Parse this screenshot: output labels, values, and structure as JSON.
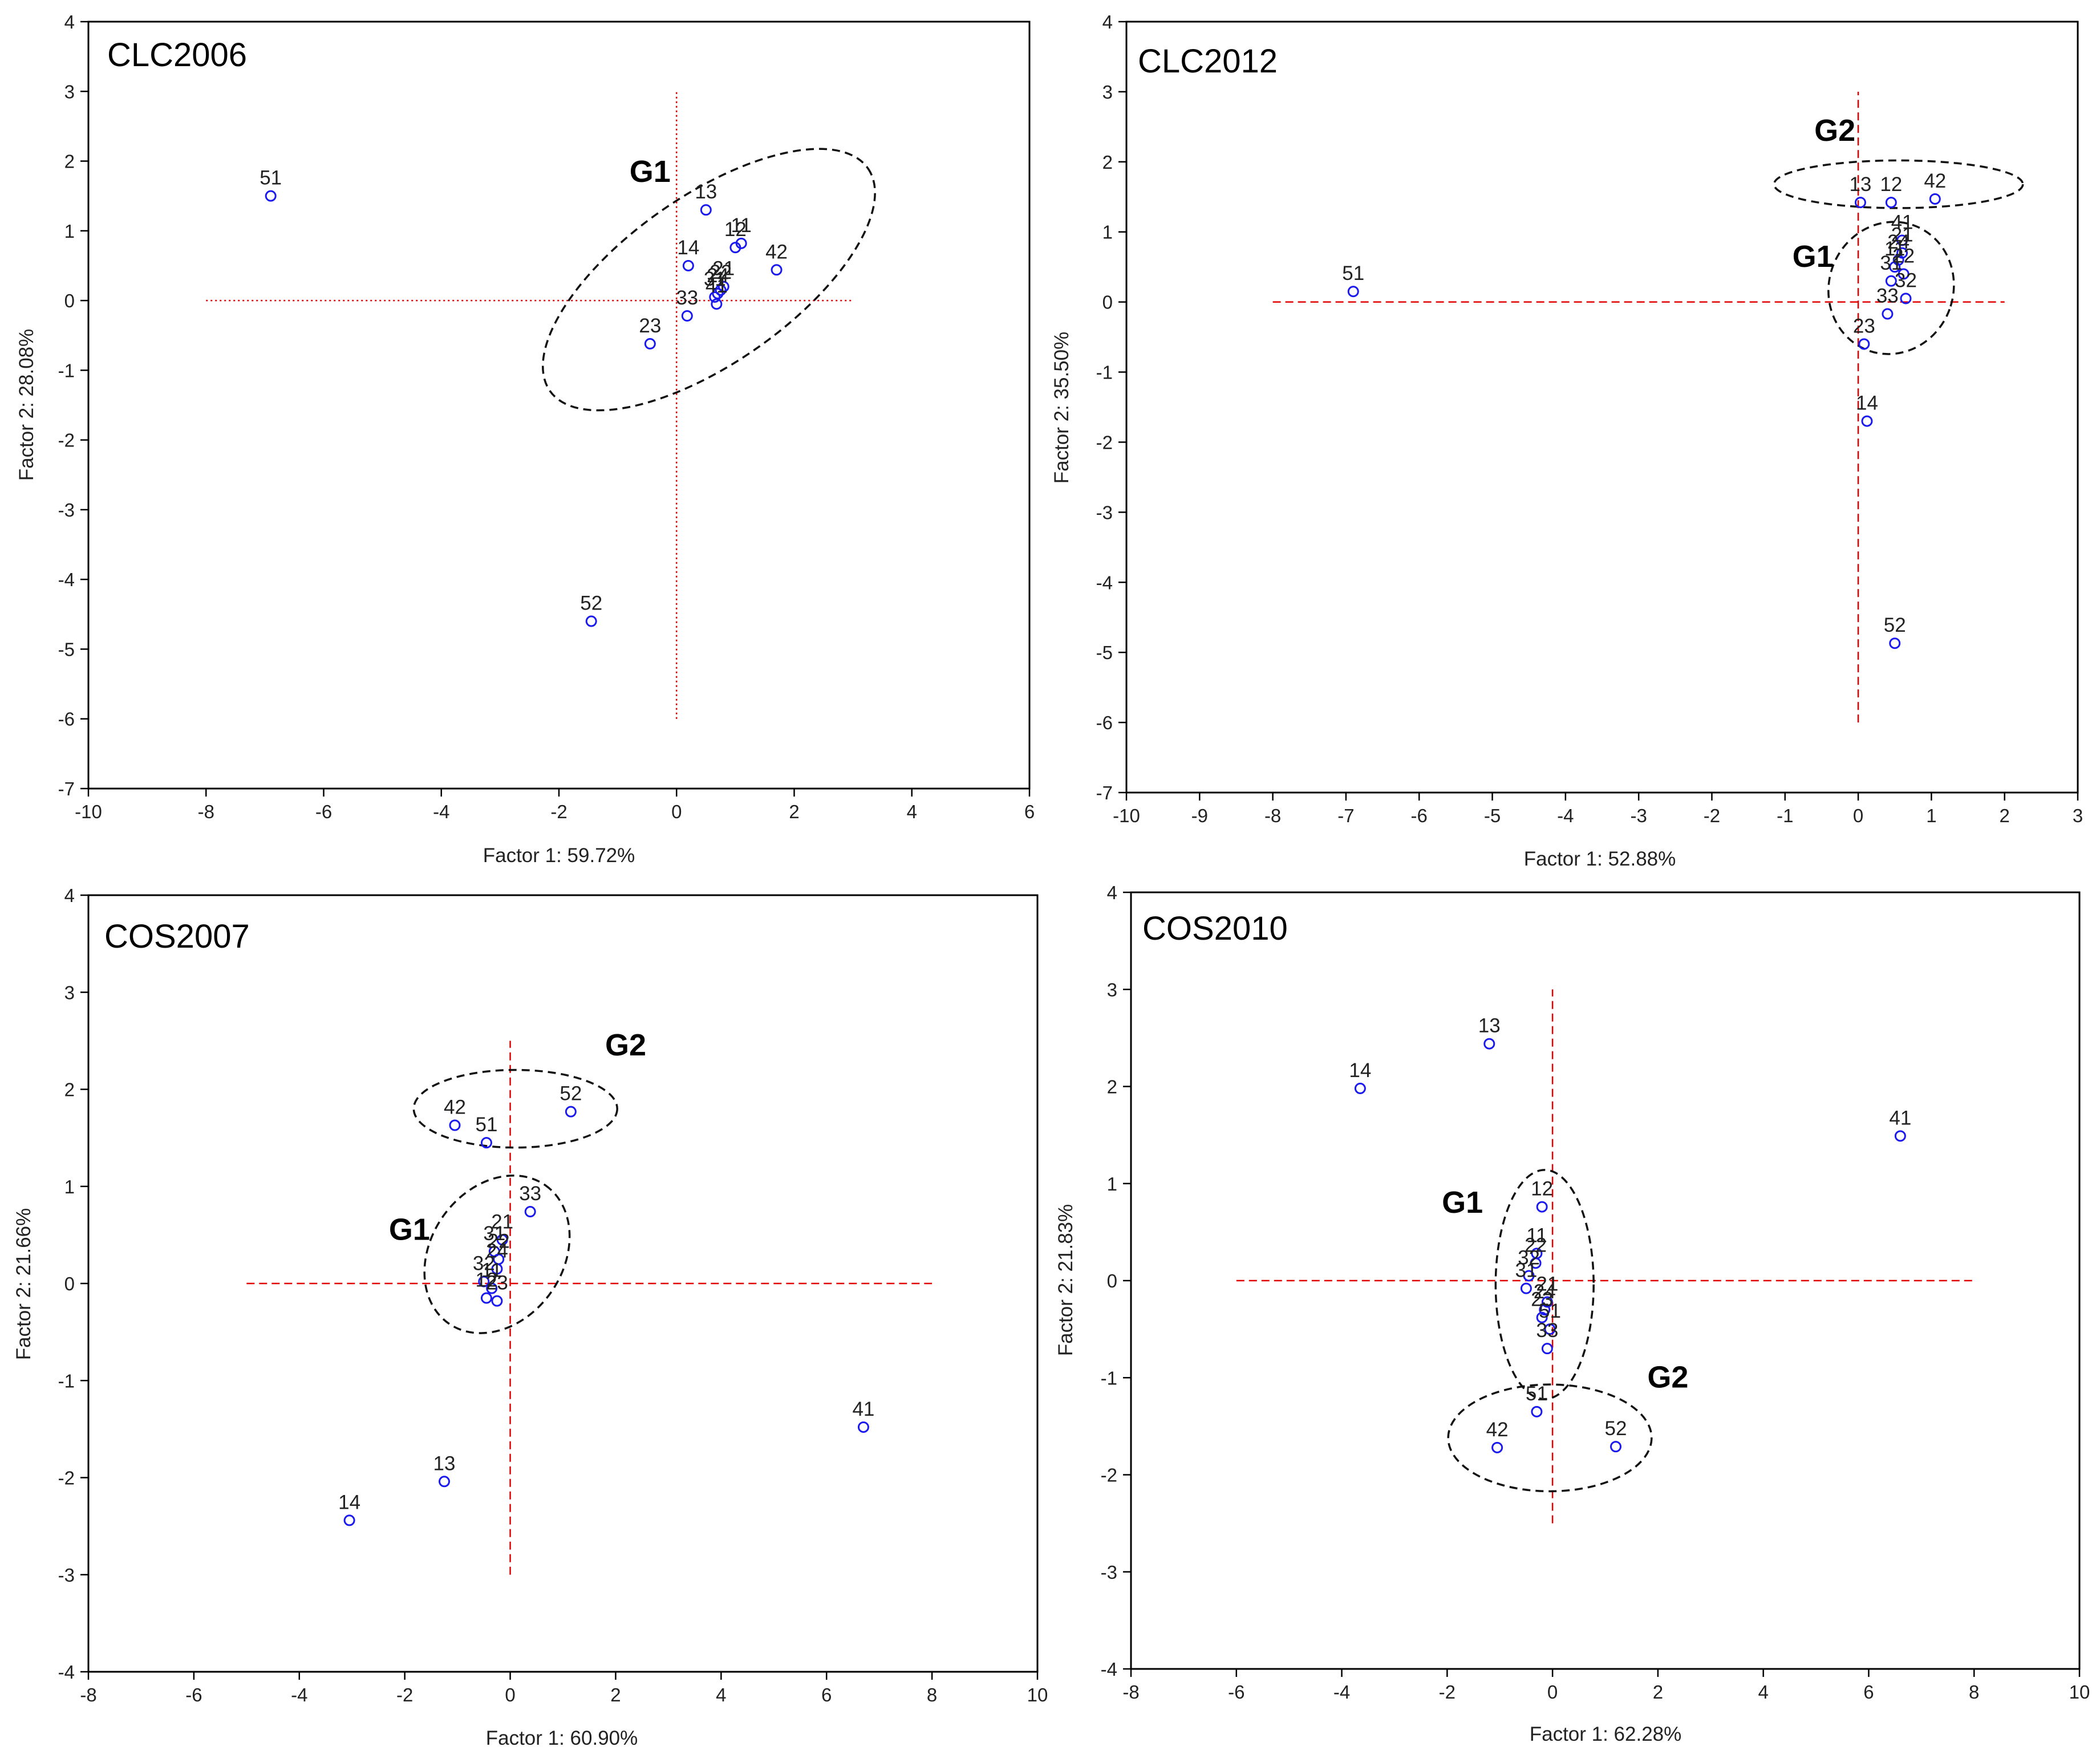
{
  "chart_data": [
    {
      "type": "scatter",
      "title": "CLC2006",
      "xlabel": "Factor 1: 59.72%",
      "ylabel": "Factor 2: 28.08%",
      "xlim": [
        -10,
        6
      ],
      "ylim": [
        -7,
        4
      ],
      "xticks": [
        -10,
        -8,
        -6,
        -4,
        -2,
        0,
        2,
        4,
        6
      ],
      "yticks": [
        -7,
        -6,
        -5,
        -4,
        -3,
        -2,
        -1,
        0,
        1,
        2,
        3,
        4
      ],
      "crosshair": {
        "x": [
          -8,
          3
        ],
        "y": [
          -6,
          3
        ]
      },
      "points": [
        {
          "label": "51",
          "x": -6.9,
          "y": 1.5
        },
        {
          "label": "52",
          "x": -1.45,
          "y": -4.6
        },
        {
          "label": "13",
          "x": 0.5,
          "y": 1.3
        },
        {
          "label": "11",
          "x": 1.1,
          "y": 0.82
        },
        {
          "label": "12",
          "x": 1.0,
          "y": 0.76
        },
        {
          "label": "14",
          "x": 0.2,
          "y": 0.5
        },
        {
          "label": "42",
          "x": 1.7,
          "y": 0.44
        },
        {
          "label": "21",
          "x": 0.8,
          "y": 0.2
        },
        {
          "label": "22",
          "x": 0.75,
          "y": 0.15
        },
        {
          "label": "24",
          "x": 0.7,
          "y": 0.1
        },
        {
          "label": "31",
          "x": 0.65,
          "y": 0.05
        },
        {
          "label": "41",
          "x": 0.68,
          "y": -0.05
        },
        {
          "label": "33",
          "x": 0.18,
          "y": -0.22
        },
        {
          "label": "23",
          "x": -0.45,
          "y": -0.62
        }
      ],
      "groups": [
        {
          "label": "G1",
          "cx": 0.55,
          "cy": 0.3,
          "rx": 3.3,
          "ry": 1.2,
          "angle_deg": -35,
          "label_x": -0.8,
          "label_y": 1.7
        }
      ]
    },
    {
      "type": "scatter",
      "title": "CLC2012",
      "xlabel": "Factor 1: 52.88%",
      "ylabel": "Factor 2: 35.50%",
      "xlim": [
        -10,
        3
      ],
      "ylim": [
        -7,
        4
      ],
      "xticks": [
        -10,
        -9,
        -8,
        -7,
        -6,
        -5,
        -4,
        -3,
        -2,
        -1,
        0,
        1,
        2,
        3
      ],
      "yticks": [
        -7,
        -6,
        -5,
        -4,
        -3,
        -2,
        -1,
        0,
        1,
        2,
        3,
        4
      ],
      "crosshair": {
        "x": [
          -8,
          2
        ],
        "y": [
          -6,
          3
        ]
      },
      "points": [
        {
          "label": "51",
          "x": -6.9,
          "y": 0.15
        },
        {
          "label": "13",
          "x": 0.03,
          "y": 1.42
        },
        {
          "label": "12",
          "x": 0.45,
          "y": 1.42
        },
        {
          "label": "42",
          "x": 1.05,
          "y": 1.47
        },
        {
          "label": "41",
          "x": 0.6,
          "y": 0.88
        },
        {
          "label": "21",
          "x": 0.6,
          "y": 0.7
        },
        {
          "label": "24",
          "x": 0.55,
          "y": 0.6
        },
        {
          "label": "11",
          "x": 0.5,
          "y": 0.5
        },
        {
          "label": "22",
          "x": 0.62,
          "y": 0.4
        },
        {
          "label": "31",
          "x": 0.45,
          "y": 0.3
        },
        {
          "label": "32",
          "x": 0.65,
          "y": 0.05
        },
        {
          "label": "33",
          "x": 0.4,
          "y": -0.17
        },
        {
          "label": "23",
          "x": 0.08,
          "y": -0.6
        },
        {
          "label": "14",
          "x": 0.12,
          "y": -1.7
        },
        {
          "label": "52",
          "x": 0.5,
          "y": -4.87
        }
      ],
      "groups": [
        {
          "label": "G1",
          "cx": 0.45,
          "cy": 0.2,
          "rx": 0.85,
          "ry": 0.95,
          "angle_deg": 20,
          "label_x": -0.9,
          "label_y": 0.5
        },
        {
          "label": "G2",
          "cx": 0.55,
          "cy": 1.68,
          "rx": 1.7,
          "ry": 0.34,
          "angle_deg": 0,
          "label_x": -0.6,
          "label_y": 2.3
        }
      ]
    },
    {
      "type": "scatter",
      "title": "COS2007",
      "xlabel": "Factor 1: 60.90%",
      "ylabel": "Factor 2: 21.66%",
      "xlim": [
        -8,
        10
      ],
      "ylim": [
        -4,
        4
      ],
      "xticks": [
        -8,
        -6,
        -4,
        -2,
        0,
        2,
        4,
        6,
        8,
        10
      ],
      "yticks": [
        -4,
        -3,
        -2,
        -1,
        0,
        1,
        2,
        3,
        4
      ],
      "crosshair": {
        "x": [
          -5,
          8
        ],
        "y": [
          -3,
          2.5
        ]
      },
      "points": [
        {
          "label": "42",
          "x": -1.05,
          "y": 1.63
        },
        {
          "label": "51",
          "x": -0.45,
          "y": 1.45
        },
        {
          "label": "52",
          "x": 1.15,
          "y": 1.77
        },
        {
          "label": "33",
          "x": 0.38,
          "y": 0.74
        },
        {
          "label": "21",
          "x": -0.15,
          "y": 0.45
        },
        {
          "label": "31",
          "x": -0.3,
          "y": 0.33
        },
        {
          "label": "22",
          "x": -0.22,
          "y": 0.25
        },
        {
          "label": "24",
          "x": -0.25,
          "y": 0.15
        },
        {
          "label": "32",
          "x": -0.5,
          "y": 0.02
        },
        {
          "label": "11",
          "x": -0.35,
          "y": -0.05
        },
        {
          "label": "12",
          "x": -0.45,
          "y": -0.15
        },
        {
          "label": "23",
          "x": -0.25,
          "y": -0.18
        },
        {
          "label": "41",
          "x": 6.7,
          "y": -1.48
        },
        {
          "label": "13",
          "x": -1.25,
          "y": -2.04
        },
        {
          "label": "14",
          "x": -3.05,
          "y": -2.44
        }
      ],
      "groups": [
        {
          "label": "G1",
          "cx": -0.25,
          "cy": 0.3,
          "rx": 1.6,
          "ry": 0.68,
          "angle_deg": -55,
          "label_x": -2.3,
          "label_y": 0.45
        },
        {
          "label": "G2",
          "cx": 0.1,
          "cy": 1.8,
          "rx": 1.93,
          "ry": 0.4,
          "angle_deg": 0,
          "label_x": 1.8,
          "label_y": 2.35
        }
      ]
    },
    {
      "type": "scatter",
      "title": "COS2010",
      "xlabel": "Factor 1: 62.28%",
      "ylabel": "Factor 2: 21.83%",
      "xlim": [
        -8,
        10
      ],
      "ylim": [
        -4,
        4
      ],
      "xticks": [
        -8,
        -6,
        -4,
        -2,
        0,
        2,
        4,
        6,
        8,
        10
      ],
      "yticks": [
        -4,
        -3,
        -2,
        -1,
        0,
        1,
        2,
        3,
        4
      ],
      "crosshair": {
        "x": [
          -6,
          8
        ],
        "y": [
          -2.5,
          3
        ]
      },
      "points": [
        {
          "label": "13",
          "x": -1.2,
          "y": 2.44
        },
        {
          "label": "14",
          "x": -3.65,
          "y": 1.98
        },
        {
          "label": "41",
          "x": 6.6,
          "y": 1.49
        },
        {
          "label": "12",
          "x": -0.2,
          "y": 0.76
        },
        {
          "label": "11",
          "x": -0.3,
          "y": 0.28
        },
        {
          "label": "22",
          "x": -0.32,
          "y": 0.18
        },
        {
          "label": "32",
          "x": -0.45,
          "y": 0.05
        },
        {
          "label": "31",
          "x": -0.5,
          "y": -0.08
        },
        {
          "label": "21",
          "x": -0.1,
          "y": -0.22
        },
        {
          "label": "24",
          "x": -0.15,
          "y": -0.3
        },
        {
          "label": "23",
          "x": -0.2,
          "y": -0.38
        },
        {
          "label": "51",
          "x": -0.05,
          "y": -0.5
        },
        {
          "label": "33",
          "x": -0.1,
          "y": -0.7
        },
        {
          "label": "51",
          "x": -0.3,
          "y": -1.35
        },
        {
          "label": "42",
          "x": -1.05,
          "y": -1.72
        },
        {
          "label": "52",
          "x": 1.2,
          "y": -1.71
        }
      ],
      "groups": [
        {
          "label": "G1",
          "cx": -0.15,
          "cy": -0.04,
          "rx": 0.93,
          "ry": 1.18,
          "angle_deg": 0,
          "label_x": -2.1,
          "label_y": 0.7
        },
        {
          "label": "G2",
          "cx": -0.05,
          "cy": -1.62,
          "rx": 1.93,
          "ry": 0.55,
          "angle_deg": 0,
          "label_x": 1.8,
          "label_y": -1.1
        }
      ]
    }
  ]
}
